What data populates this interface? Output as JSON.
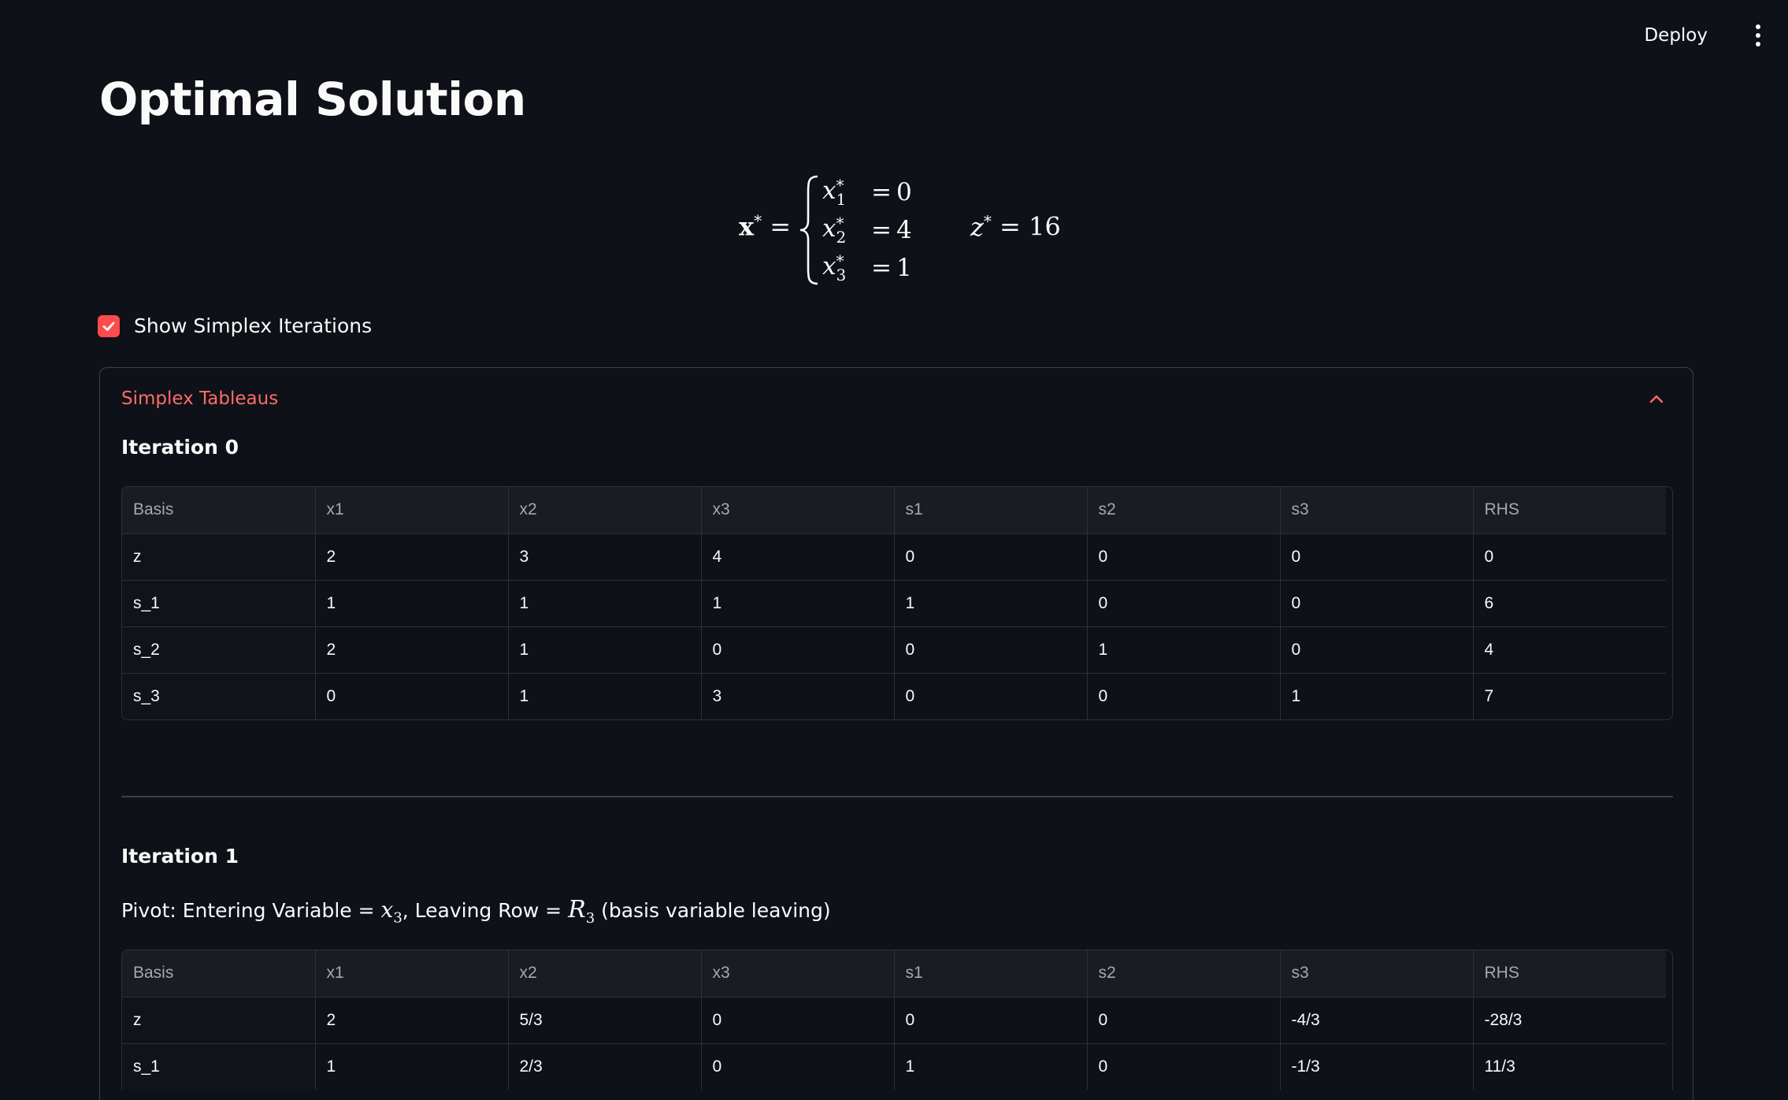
{
  "header": {
    "deploy_label": "Deploy"
  },
  "page_title": "Optimal Solution",
  "solution": {
    "vector_symbol": "x",
    "star": "*",
    "vars": [
      {
        "name": "x",
        "sub": "1",
        "value": "0"
      },
      {
        "name": "x",
        "sub": "2",
        "value": "4"
      },
      {
        "name": "x",
        "sub": "3",
        "value": "1"
      }
    ],
    "objective_symbol": "z",
    "objective_value": "16"
  },
  "checkbox": {
    "label": "Show Simplex Iterations",
    "checked": true,
    "accent_color": "#ff4b4b"
  },
  "expander": {
    "title": "Simplex Tableaus",
    "expanded": true,
    "title_color": "#ff6b6b"
  },
  "iterations": [
    {
      "title": "Iteration 0",
      "columns": [
        "Basis",
        "x1",
        "x2",
        "x3",
        "s1",
        "s2",
        "s3",
        "RHS"
      ],
      "rows": [
        [
          "z",
          "2",
          "3",
          "4",
          "0",
          "0",
          "0",
          "0"
        ],
        [
          "s_1",
          "1",
          "1",
          "1",
          "1",
          "0",
          "0",
          "6"
        ],
        [
          "s_2",
          "2",
          "1",
          "0",
          "0",
          "1",
          "0",
          "4"
        ],
        [
          "s_3",
          "0",
          "1",
          "3",
          "0",
          "0",
          "1",
          "7"
        ]
      ]
    },
    {
      "title": "Iteration 1",
      "pivot": {
        "prefix": "Pivot: Entering Variable = ",
        "entering_var": "x",
        "entering_sub": "3",
        "middle": ", Leaving Row = ",
        "leaving_row": "R",
        "leaving_sub": "3",
        "suffix": " (basis variable leaving)"
      },
      "columns": [
        "Basis",
        "x1",
        "x2",
        "x3",
        "s1",
        "s2",
        "s3",
        "RHS"
      ],
      "rows": [
        [
          "z",
          "2",
          "5/3",
          "0",
          "0",
          "0",
          "-4/3",
          "-28/3"
        ],
        [
          "s_1",
          "1",
          "2/3",
          "0",
          "1",
          "0",
          "-1/3",
          "11/3"
        ]
      ]
    }
  ]
}
